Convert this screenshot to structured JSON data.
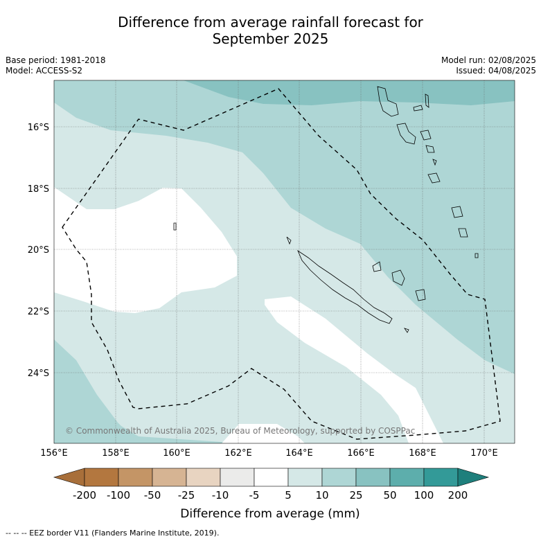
{
  "title_line1": "Difference from average rainfall forecast for",
  "title_line2": "September 2025",
  "base_period": "Base period: 1981-2018",
  "model": "Model: ACCESS-S2",
  "model_run": "Model run: 02/08/2025",
  "issued": "Issued: 04/08/2025",
  "copyright": "© Commonwealth of Australia 2025, Bureau of Meteorology, supported by COSPPac",
  "lat_labels": [
    "16°S",
    "18°S",
    "20°S",
    "22°S",
    "24°S"
  ],
  "lon_labels": [
    "156°E",
    "158°E",
    "160°E",
    "162°E",
    "164°E",
    "166°E",
    "168°E",
    "170°E"
  ],
  "colorbar": {
    "ticks": [
      "-200",
      "-100",
      "-50",
      "-25",
      "-10",
      "-5",
      "5",
      "10",
      "25",
      "50",
      "100",
      "200"
    ],
    "colors": [
      "#a86f3a",
      "#b3773f",
      "#c49566",
      "#d6b493",
      "#e8d4c1",
      "#ebebea",
      "#ffffff",
      "#d5e8e7",
      "#aed6d5",
      "#88c2c1",
      "#5daeac",
      "#339a98",
      "#1e7f7c"
    ],
    "label": "Difference from average (mm)"
  },
  "footer": "-- -- -- EEZ border V11 (Flanders Marine Institute, 2019)."
}
